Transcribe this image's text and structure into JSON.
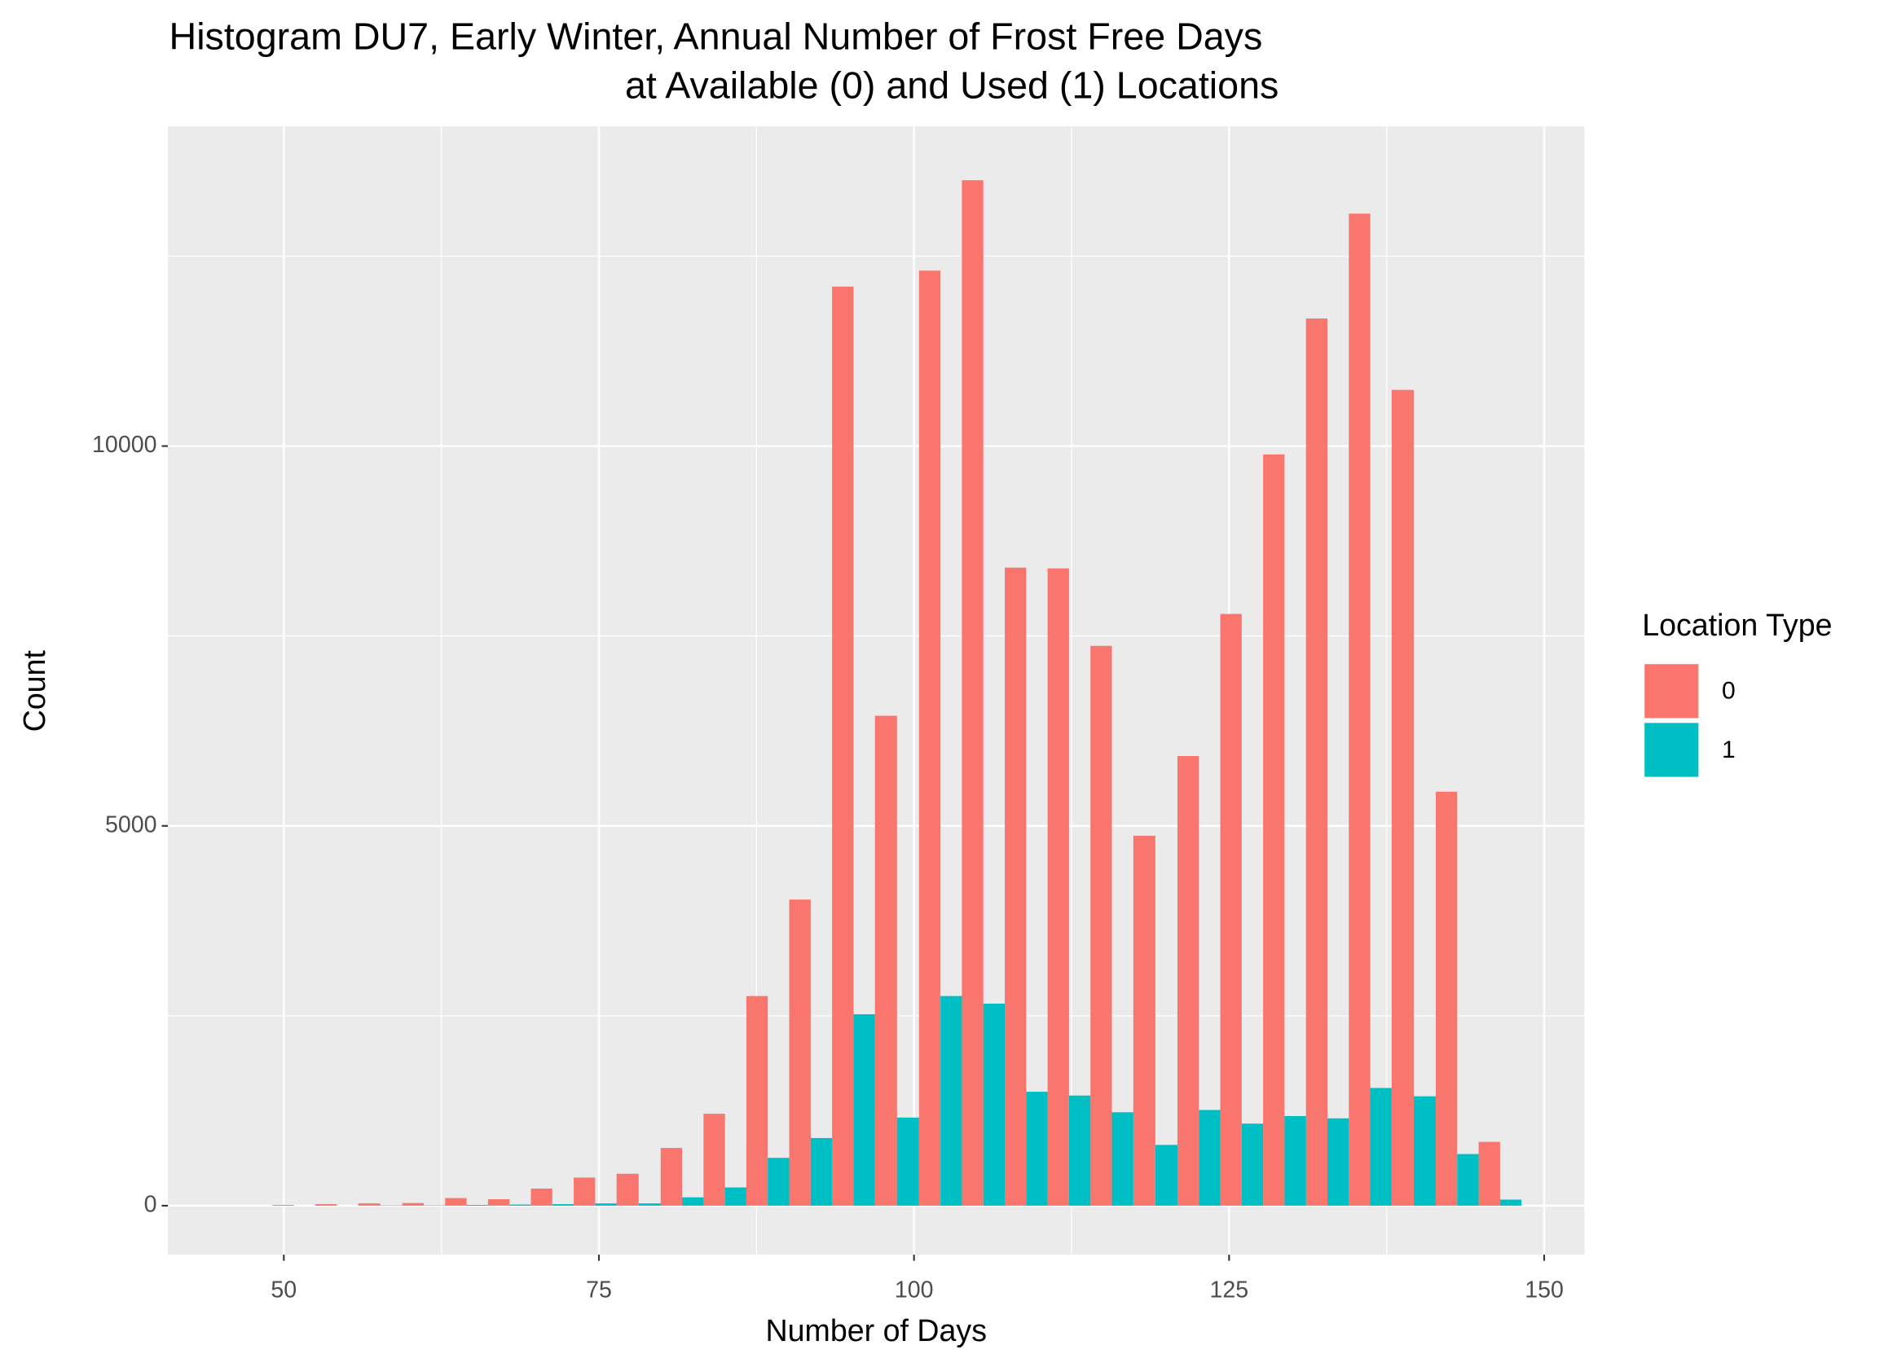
{
  "chart_data": {
    "type": "histogram",
    "title": [
      "Histogram DU7, Early Winter, Annual Number of Frost Free Days",
      "at Available (0) and Used (1) Locations"
    ],
    "x_label": "Number of Days",
    "y_label": "Count",
    "legend_title": "Location Type",
    "legend_position": "right",
    "grid": true,
    "bins": [
      49.1,
      52.5,
      55.9,
      59.4,
      62.8,
      66.2,
      69.6,
      73.0,
      76.4,
      79.9,
      83.3,
      86.7,
      90.1,
      93.5,
      96.9,
      100.4,
      103.8,
      107.2,
      110.6,
      114.0,
      117.4,
      120.9,
      124.3,
      127.7,
      131.1,
      134.5,
      137.9,
      141.4,
      144.8,
      148.2
    ],
    "series": [
      {
        "name": "0",
        "color": "#F8766D",
        "values": [
          10,
          20,
          30,
          35,
          100,
          85,
          225,
          370,
          420,
          760,
          1210,
          2760,
          4030,
          12100,
          6450,
          12310,
          13500,
          8400,
          8390,
          7370,
          4870,
          5920,
          7790,
          9890,
          11680,
          13060,
          10740,
          5450,
          840
        ]
      },
      {
        "name": "1",
        "color": "#00BFC4",
        "values": [
          0,
          0,
          5,
          5,
          10,
          15,
          20,
          30,
          30,
          110,
          240,
          630,
          890,
          2520,
          1160,
          2760,
          2660,
          1500,
          1450,
          1230,
          800,
          1260,
          1080,
          1180,
          1150,
          1550,
          1440,
          680,
          80
        ]
      }
    ],
    "xlim": [
      40.8,
      153.2
    ],
    "xticks": [
      50,
      75,
      100,
      125,
      150
    ],
    "ylim": [
      -645,
      14210
    ],
    "yticks": [
      0,
      5000,
      10000
    ]
  }
}
